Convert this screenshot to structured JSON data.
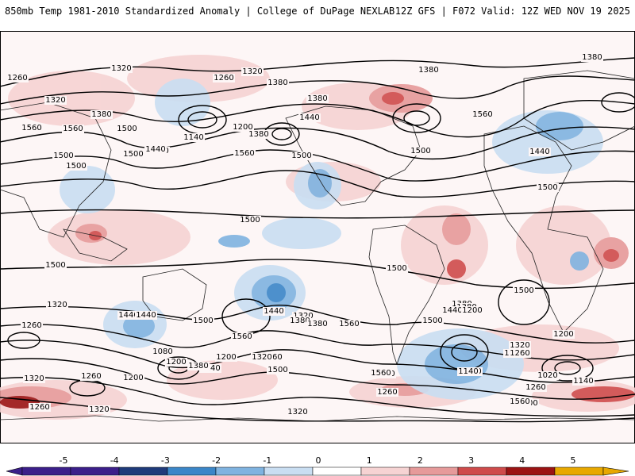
{
  "header": {
    "left": "850mb Temp 1981-2010 Standardized Anomaly | College of DuPage NEXLAB",
    "right": "12Z GFS | F072 Valid: 12Z WED NOV 19 2025"
  },
  "legend": {
    "ticks": [
      "-5",
      "-4",
      "-3",
      "-2",
      "-1",
      "0",
      "1",
      "2",
      "3",
      "4",
      "5"
    ],
    "colors": [
      "#3b1f8a",
      "#1f3a7a",
      "#3a86c8",
      "#7fb3e0",
      "#c9def2",
      "#ffffff",
      "#f6d3d3",
      "#e69a9a",
      "#cf4b4b",
      "#9b1313",
      "#e8a800"
    ]
  },
  "contours": {
    "values": [
      "1320",
      "1260",
      "1380",
      "1260",
      "1320",
      "1380",
      "1380",
      "1380",
      "1320",
      "1380",
      "1440",
      "1500",
      "1560",
      "1560",
      "1500",
      "1440",
      "1140",
      "1200",
      "1380",
      "1560",
      "1500",
      "1440",
      "1500",
      "1560",
      "1500",
      "1440",
      "1500",
      "1500",
      "1500",
      "1500",
      "1500",
      "1500",
      "1440",
      "1380",
      "1320",
      "1260",
      "1200",
      "1140",
      "1080",
      "1140",
      "1200",
      "1260",
      "1320",
      "1380",
      "1440",
      "1500",
      "1560",
      "1560",
      "1500",
      "1440",
      "1380",
      "1320",
      "1260",
      "1200",
      "1140",
      "1080",
      "1020",
      "1140",
      "1200",
      "1260",
      "1320",
      "1380",
      "1440",
      "1500",
      "1560",
      "1260",
      "1320",
      "1200",
      "1260",
      "1320",
      "1380",
      "1440",
      "1500",
      "1560",
      "1200",
      "1260",
      "1320"
    ]
  }
}
